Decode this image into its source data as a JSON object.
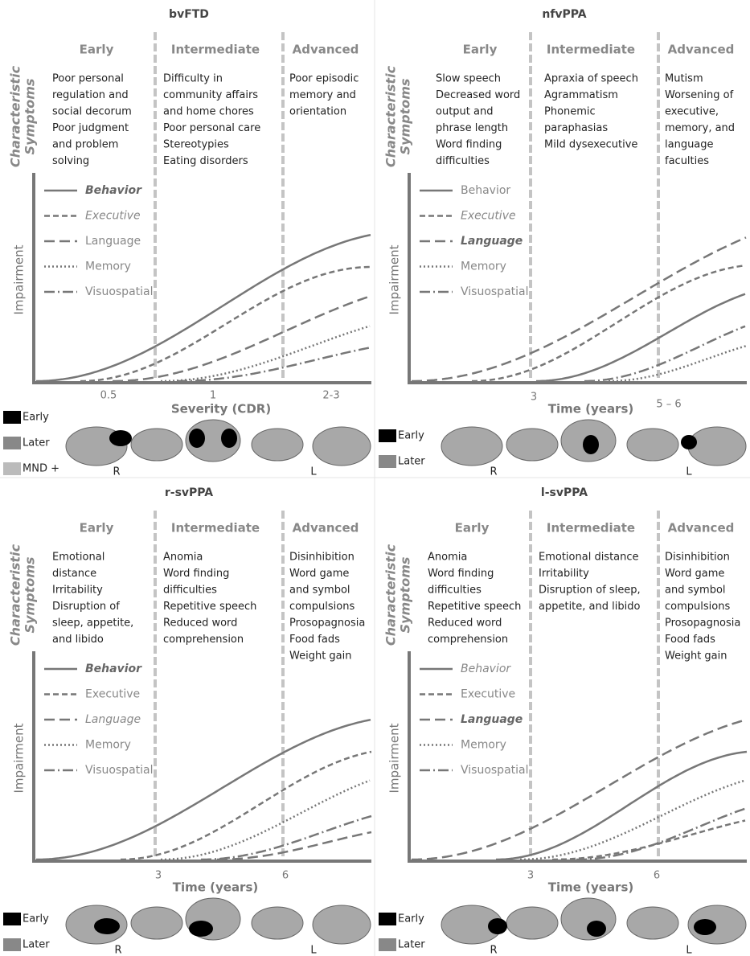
{
  "panels": [
    {
      "title": "bvFTD",
      "side_label": [
        "Characteristic",
        "Symptoms"
      ],
      "y_label": "Impairment",
      "stages": [
        {
          "name": "Early",
          "symptoms": [
            "Poor personal",
            "regulation and",
            "social decorum",
            "Poor judgment",
            "and problem",
            "solving"
          ]
        },
        {
          "name": "Intermediate",
          "symptoms": [
            "Difficulty in",
            "community affairs",
            "and home chores",
            "Poor personal care",
            "Stereotypies",
            "Eating disorders"
          ]
        },
        {
          "name": "Advanced",
          "symptoms": [
            "Poor episodic",
            "memory and",
            "orientation"
          ]
        }
      ],
      "legend": [
        "Behavior",
        "Executive",
        "Language",
        "Memory",
        "Visuospatial"
      ],
      "x_ticks": [
        "0.5",
        "1",
        "2-3"
      ],
      "x_label": "Severity (CDR)",
      "brain_legend": [
        "Early",
        "Later",
        "MND +"
      ],
      "sides": [
        "R",
        "L"
      ]
    },
    {
      "title": "nfvPPA",
      "side_label": [
        "Characteristic",
        "Symptoms"
      ],
      "y_label": "Impairment",
      "stages": [
        {
          "name": "Early",
          "symptoms": [
            "Slow speech",
            "Decreased word",
            "output and",
            "phrase length",
            "Word finding",
            "difficulties"
          ]
        },
        {
          "name": "Intermediate",
          "symptoms": [
            "Apraxia of speech",
            "Agrammatism",
            "Phonemic",
            "paraphasias",
            "Mild dysexecutive"
          ]
        },
        {
          "name": "Advanced",
          "symptoms": [
            "Mutism",
            "Worsening of",
            "executive,",
            "memory, and",
            "language",
            "faculties"
          ]
        }
      ],
      "legend": [
        "Behavior",
        "Executive",
        "Language",
        "Memory",
        "Visuospatial"
      ],
      "x_ticks": [
        "3",
        "5 – 6"
      ],
      "x_label": "Time (years)",
      "brain_legend": [
        "Early",
        "Later"
      ],
      "sides": [
        "R",
        "L"
      ]
    },
    {
      "title": "r-svPPA",
      "side_label": [
        "Characteristic",
        "Symptoms"
      ],
      "y_label": "Impairment",
      "stages": [
        {
          "name": "Early",
          "symptoms": [
            "Emotional",
            "distance",
            "Irritability",
            "Disruption of",
            "sleep, appetite,",
            "and libido"
          ]
        },
        {
          "name": "Intermediate",
          "symptoms": [
            "Anomia",
            "Word finding",
            "difficulties",
            "Repetitive speech",
            "Reduced word",
            "comprehension"
          ]
        },
        {
          "name": "Advanced",
          "symptoms": [
            "Disinhibition",
            "Word game",
            "and symbol",
            "compulsions",
            "Prosopagnosia",
            "Food fads",
            "Weight gain"
          ]
        }
      ],
      "legend": [
        "Behavior",
        "Executive",
        "Language",
        "Memory",
        "Visuospatial"
      ],
      "x_ticks": [
        "3",
        "6"
      ],
      "x_label": "Time (years)",
      "brain_legend": [
        "Early",
        "Later"
      ],
      "sides": [
        "R",
        "L"
      ]
    },
    {
      "title": "l-svPPA",
      "side_label": [
        "Characteristic",
        "Symptoms"
      ],
      "y_label": "Impairment",
      "stages": [
        {
          "name": "Early",
          "symptoms": [
            "Anomia",
            "Word finding",
            "difficulties",
            "Repetitive speech",
            "Reduced word",
            "comprehension"
          ]
        },
        {
          "name": "Intermediate",
          "symptoms": [
            "Emotional distance",
            "Irritability",
            "Disruption of sleep,",
            "appetite, and libido"
          ]
        },
        {
          "name": "Advanced",
          "symptoms": [
            "Disinhibition",
            "Word game",
            "and symbol",
            "compulsions",
            "Prosopagnosia",
            "Food fads",
            "Weight gain"
          ]
        }
      ],
      "legend": [
        "Behavior",
        "Executive",
        "Language",
        "Memory",
        "Visuospatial"
      ],
      "x_ticks": [
        "3",
        "6"
      ],
      "x_label": "Time (years)",
      "brain_legend": [
        "Early",
        "Later"
      ],
      "sides": [
        "R",
        "L"
      ]
    }
  ]
}
